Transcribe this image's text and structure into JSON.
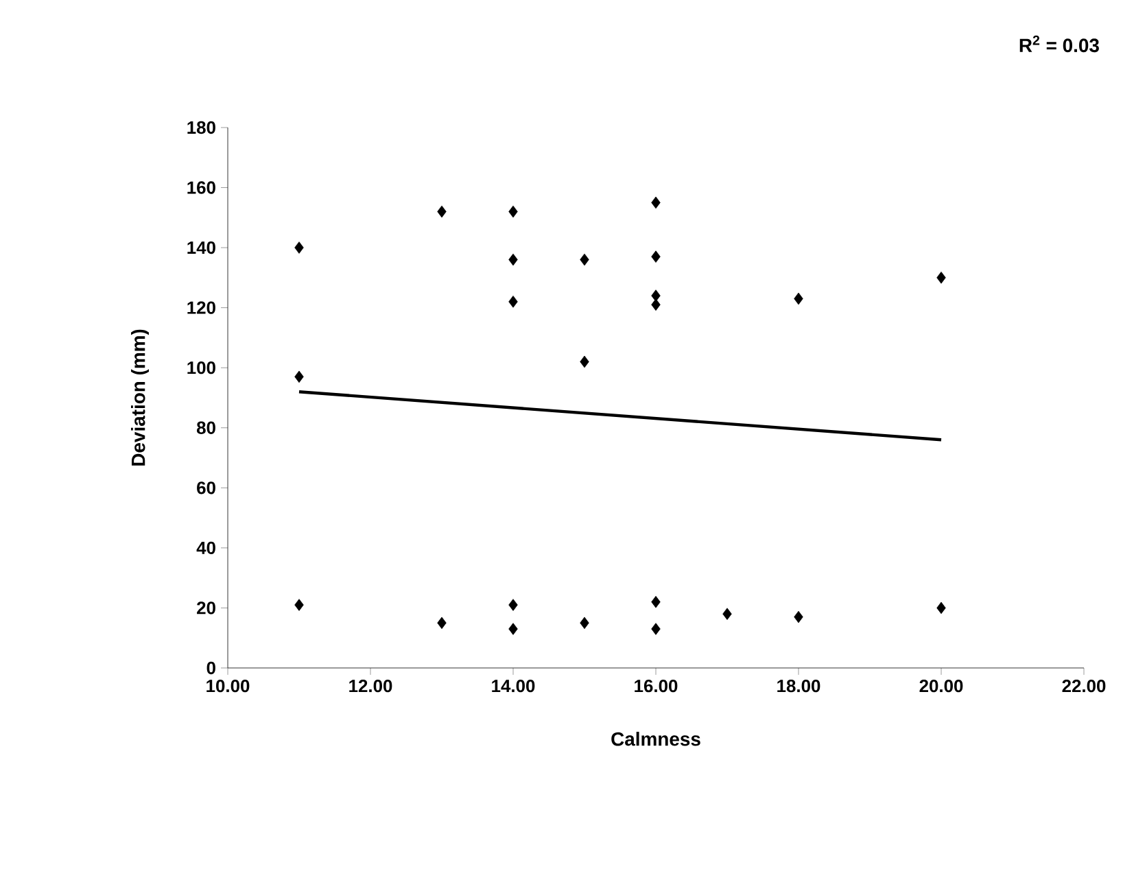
{
  "chart_data": {
    "type": "scatter",
    "xlabel": "Calmness",
    "ylabel": "Deviation (mm)",
    "annotations": [
      "R$^{2}$ = 0.03"
    ],
    "xlim": [
      10,
      22
    ],
    "ylim": [
      0,
      180
    ],
    "xticks": [
      {
        "value": 10,
        "label": "10.00"
      },
      {
        "value": 12,
        "label": "12.00"
      },
      {
        "value": 14,
        "label": "14.00"
      },
      {
        "value": 16,
        "label": "16.00"
      },
      {
        "value": 18,
        "label": "18.00"
      },
      {
        "value": 20,
        "label": "20.00"
      },
      {
        "value": 22,
        "label": "22.00"
      }
    ],
    "yticks": [
      0,
      20,
      40,
      60,
      80,
      100,
      120,
      140,
      160,
      180
    ],
    "grid": false,
    "marker": "diamond",
    "series": [
      {
        "color": "#000000",
        "x": [
          11,
          11,
          11,
          13,
          13,
          14,
          14,
          14,
          14,
          14,
          15,
          15,
          15,
          16,
          16,
          16,
          16,
          16,
          16,
          17,
          18,
          18,
          20,
          20
        ],
        "values": [
          140,
          97,
          21,
          152,
          15,
          152,
          136,
          122,
          21,
          13,
          136,
          102,
          15,
          155,
          137,
          124,
          121,
          22,
          13,
          18,
          123,
          17,
          130,
          20
        ]
      },
      {
        "type": "line",
        "color": "#000000",
        "marker": "none",
        "line_style": "solid",
        "x": [
          11,
          20
        ],
        "values": [
          92,
          76
        ]
      }
    ]
  }
}
